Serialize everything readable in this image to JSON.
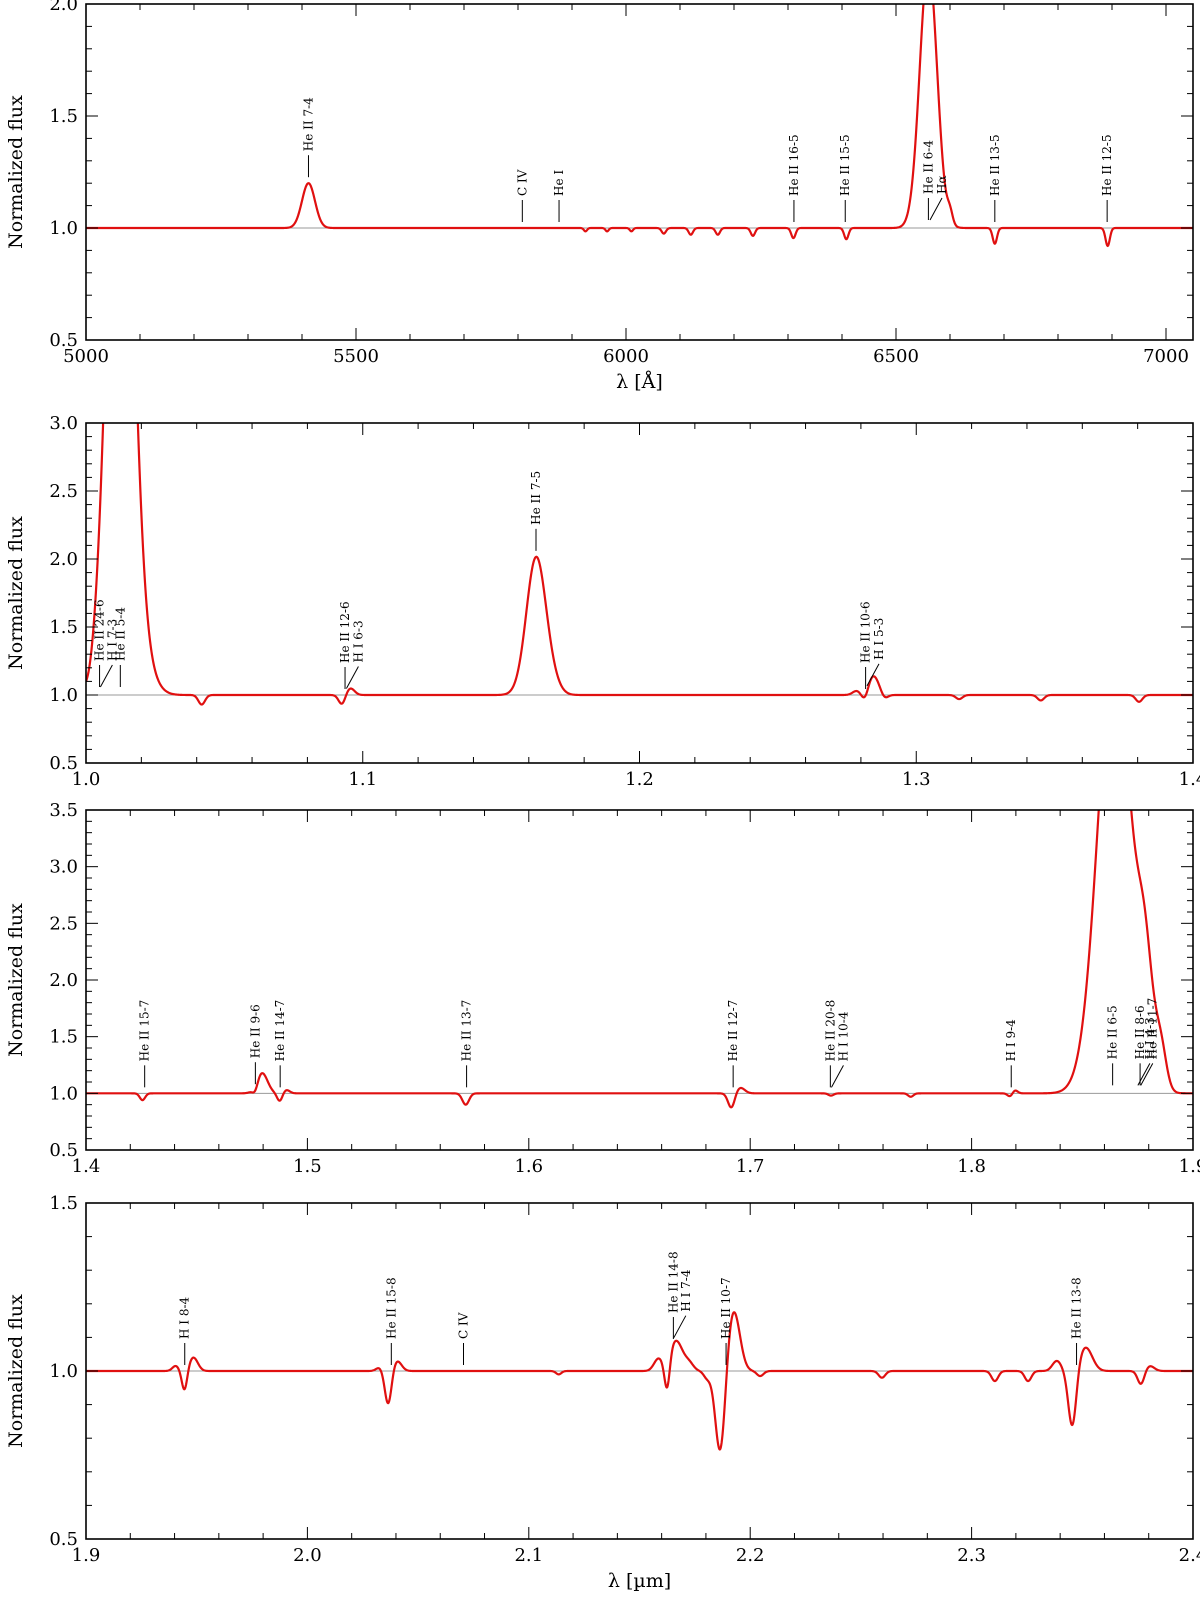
{
  "colors": {
    "spectrum": "#e01010",
    "continuum": "#999999",
    "axes": "#000000"
  },
  "chart_data": [
    {
      "type": "line",
      "xlabel": "λ [Å]",
      "ylabel": "Normalized flux",
      "xlim": [
        5000,
        7050
      ],
      "ylim": [
        0.5,
        2.0
      ],
      "xticks": [
        5000,
        5500,
        6000,
        6500,
        7000
      ],
      "xtick_labels": [
        "5000",
        "5500",
        "6000",
        "6500",
        "7000"
      ],
      "yticks": [
        0.5,
        1.0,
        1.5,
        2.0
      ],
      "ytick_labels": [
        "0.5",
        "1.0",
        "1.5",
        "2.0"
      ],
      "continuum": 1.0,
      "features": [
        {
          "x": 5412,
          "a": 0.2,
          "w": 12
        },
        {
          "x": 5925,
          "a": -0.015,
          "w": 3
        },
        {
          "x": 5965,
          "a": -0.015,
          "w": 3
        },
        {
          "x": 6010,
          "a": -0.015,
          "w": 3
        },
        {
          "x": 6070,
          "a": -0.025,
          "w": 4
        },
        {
          "x": 6120,
          "a": -0.03,
          "w": 4
        },
        {
          "x": 6170,
          "a": -0.03,
          "w": 4
        },
        {
          "x": 6235,
          "a": -0.035,
          "w": 4
        },
        {
          "x": 6310,
          "a": -0.045,
          "w": 4
        },
        {
          "x": 6408,
          "a": -0.05,
          "w": 4
        },
        {
          "x": 6560,
          "a": 1.18,
          "w": 16
        },
        {
          "x": 6600,
          "a": 0.05,
          "w": 5
        },
        {
          "x": 6683,
          "a": -0.07,
          "w": 4
        },
        {
          "x": 6892,
          "a": -0.08,
          "w": 4
        }
      ],
      "labels": [
        {
          "text": "He II 7-4",
          "x": 5412
        },
        {
          "text": "C IV",
          "x": 5808
        },
        {
          "text": "He I",
          "x": 5876
        },
        {
          "text": "He II 16-5",
          "x": 6311
        },
        {
          "text": "He II 15-5",
          "x": 6406
        },
        {
          "text": "He II 6-4",
          "x": 6560
        },
        {
          "text": "Hα",
          "x": 6563
        },
        {
          "text": "He II 13-5",
          "x": 6683
        },
        {
          "text": "He II 12-5",
          "x": 6891
        }
      ]
    },
    {
      "type": "line",
      "xlabel": "",
      "ylabel": "Normalized flux",
      "xlim": [
        1.0,
        1.4
      ],
      "ylim": [
        0.5,
        3.0
      ],
      "xticks": [
        1.0,
        1.1,
        1.2,
        1.3,
        1.4
      ],
      "xtick_labels": [
        "1.0",
        "1.1",
        "1.2",
        "1.3",
        "1.4"
      ],
      "yticks": [
        0.5,
        1.0,
        1.5,
        2.0,
        2.5,
        3.0
      ],
      "ytick_labels": [
        "0.5",
        "1.0",
        "1.5",
        "2.0",
        "2.5",
        "3.0"
      ],
      "continuum": 1.0,
      "features": [
        {
          "x": 1.0012,
          "a": -0.03,
          "w": 0.0012
        },
        {
          "x": 1.0124,
          "a": 5.2,
          "w": 0.0045
        },
        {
          "x": 1.022,
          "a": 0.1,
          "w": 0.004
        },
        {
          "x": 1.0418,
          "a": -0.07,
          "w": 0.0012
        },
        {
          "x": 1.0925,
          "a": -0.07,
          "w": 0.0012
        },
        {
          "x": 1.0955,
          "a": 0.05,
          "w": 0.0015
        },
        {
          "x": 1.1626,
          "a": 1.0,
          "w": 0.0035
        },
        {
          "x": 1.168,
          "a": 0.08,
          "w": 0.003
        },
        {
          "x": 1.2815,
          "a": -0.06,
          "w": 0.0012
        },
        {
          "x": 1.2845,
          "a": 0.14,
          "w": 0.002
        },
        {
          "x": 1.2785,
          "a": 0.03,
          "w": 0.0015
        },
        {
          "x": 1.2885,
          "a": -0.03,
          "w": 0.0012
        },
        {
          "x": 1.3155,
          "a": -0.03,
          "w": 0.0012
        },
        {
          "x": 1.345,
          "a": -0.04,
          "w": 0.0012
        },
        {
          "x": 1.3805,
          "a": -0.05,
          "w": 0.0012
        }
      ],
      "labels": [
        {
          "text": "He II 24-6",
          "x": 1.0049
        },
        {
          "text": "H I 7-3",
          "x": 1.0052
        },
        {
          "text": "He II 5-4",
          "x": 1.0124
        },
        {
          "text": "He II 12-6",
          "x": 1.0936
        },
        {
          "text": "H I 6-3",
          "x": 1.0941
        },
        {
          "text": "He II 7-5",
          "x": 1.1626
        },
        {
          "text": "He II 10-6",
          "x": 1.2817
        },
        {
          "text": "H I 5-3",
          "x": 1.2822
        }
      ]
    },
    {
      "type": "line",
      "xlabel": "",
      "ylabel": "Normalized flux",
      "xlim": [
        1.4,
        1.9
      ],
      "ylim": [
        0.5,
        3.5
      ],
      "xticks": [
        1.4,
        1.5,
        1.6,
        1.7,
        1.8,
        1.9
      ],
      "xtick_labels": [
        "1.4",
        "1.5",
        "1.6",
        "1.7",
        "1.8",
        "1.9"
      ],
      "yticks": [
        0.5,
        1.0,
        1.5,
        2.0,
        2.5,
        3.0,
        3.5
      ],
      "ytick_labels": [
        "0.5",
        "1.0",
        "1.5",
        "2.0",
        "2.5",
        "3.0",
        "3.5"
      ],
      "continuum": 1.0,
      "features": [
        {
          "x": 1.4255,
          "a": -0.06,
          "w": 0.0012
        },
        {
          "x": 1.4765,
          "a": -0.06,
          "w": 0.0012
        },
        {
          "x": 1.4795,
          "a": 0.18,
          "w": 0.0025
        },
        {
          "x": 1.4875,
          "a": -0.07,
          "w": 0.0012
        },
        {
          "x": 1.4905,
          "a": 0.03,
          "w": 0.0015
        },
        {
          "x": 1.5715,
          "a": -0.1,
          "w": 0.0015
        },
        {
          "x": 1.6915,
          "a": -0.13,
          "w": 0.0015
        },
        {
          "x": 1.6955,
          "a": 0.05,
          "w": 0.002
        },
        {
          "x": 1.7365,
          "a": -0.02,
          "w": 0.0012
        },
        {
          "x": 1.7725,
          "a": -0.03,
          "w": 0.0012
        },
        {
          "x": 1.8175,
          "a": -0.03,
          "w": 0.0012
        },
        {
          "x": 1.8195,
          "a": 0.03,
          "w": 0.0012
        },
        {
          "x": 1.8645,
          "a": 3.9,
          "w": 0.0075
        },
        {
          "x": 1.8785,
          "a": 0.9,
          "w": 0.0035
        },
        {
          "x": 1.8855,
          "a": 0.35,
          "w": 0.0025
        }
      ],
      "labels": [
        {
          "text": "He II 15-7",
          "x": 1.4265
        },
        {
          "text": "He II 9-6",
          "x": 1.4765
        },
        {
          "text": "He II 14-7",
          "x": 1.4877
        },
        {
          "text": "He II 13-7",
          "x": 1.5719
        },
        {
          "text": "He II 12-7",
          "x": 1.6923
        },
        {
          "text": "He II 20-8",
          "x": 1.7362
        },
        {
          "text": "H I 10-4",
          "x": 1.7367
        },
        {
          "text": "H I 9-4",
          "x": 1.8179
        },
        {
          "text": "He II 6-5",
          "x": 1.8637
        },
        {
          "text": "He II 8-6",
          "x": 1.8761
        },
        {
          "text": "H I 4-3",
          "x": 1.8751
        },
        {
          "text": "He II 11-7",
          "x": 1.8764
        }
      ]
    },
    {
      "type": "line",
      "xlabel": "λ [µm]",
      "ylabel": "Normalized flux",
      "xlim": [
        1.9,
        2.4
      ],
      "ylim": [
        0.5,
        1.5
      ],
      "xticks": [
        1.9,
        2.0,
        2.1,
        2.2,
        2.3,
        2.4
      ],
      "xtick_labels": [
        "1.9",
        "2.0",
        "2.1",
        "2.2",
        "2.3",
        "2.4"
      ],
      "yticks": [
        0.5,
        1.0,
        1.5
      ],
      "ytick_labels": [
        "0.5",
        "1.0",
        "1.5"
      ],
      "continuum": 1.0,
      "features": [
        {
          "x": 1.9405,
          "a": 0.015,
          "w": 0.0015
        },
        {
          "x": 1.9445,
          "a": -0.06,
          "w": 0.0012
        },
        {
          "x": 1.9485,
          "a": 0.04,
          "w": 0.002
        },
        {
          "x": 2.0325,
          "a": 0.01,
          "w": 0.0015
        },
        {
          "x": 2.0365,
          "a": -0.1,
          "w": 0.0015
        },
        {
          "x": 2.0405,
          "a": 0.03,
          "w": 0.002
        },
        {
          "x": 2.1135,
          "a": -0.01,
          "w": 0.0012
        },
        {
          "x": 2.1585,
          "a": 0.035,
          "w": 0.002
        },
        {
          "x": 2.1625,
          "a": -0.09,
          "w": 0.0012
        },
        {
          "x": 2.1665,
          "a": 0.09,
          "w": 0.003
        },
        {
          "x": 2.1725,
          "a": 0.02,
          "w": 0.002
        },
        {
          "x": 2.1805,
          "a": -0.02,
          "w": 0.0015
        },
        {
          "x": 2.1865,
          "a": -0.25,
          "w": 0.0022
        },
        {
          "x": 2.1925,
          "a": 0.18,
          "w": 0.0028
        },
        {
          "x": 2.2045,
          "a": -0.015,
          "w": 0.0015
        },
        {
          "x": 2.2595,
          "a": -0.02,
          "w": 0.0015
        },
        {
          "x": 2.3105,
          "a": -0.03,
          "w": 0.0015
        },
        {
          "x": 2.3255,
          "a": -0.03,
          "w": 0.0015
        },
        {
          "x": 2.3385,
          "a": 0.03,
          "w": 0.002
        },
        {
          "x": 2.3455,
          "a": -0.17,
          "w": 0.0018
        },
        {
          "x": 2.3515,
          "a": 0.07,
          "w": 0.003
        },
        {
          "x": 2.3765,
          "a": -0.04,
          "w": 0.0015
        },
        {
          "x": 2.3805,
          "a": 0.015,
          "w": 0.002
        }
      ],
      "labels": [
        {
          "text": "H I 8-4",
          "x": 1.9446
        },
        {
          "text": "He II 15-8",
          "x": 2.0379
        },
        {
          "text": "C IV",
          "x": 2.0705
        },
        {
          "text": "He II 14-8",
          "x": 2.1653
        },
        {
          "text": "H I 7-4",
          "x": 2.1655
        },
        {
          "text": "He II 10-7",
          "x": 2.1891
        },
        {
          "text": "He II 13-8",
          "x": 2.3474
        }
      ]
    }
  ]
}
